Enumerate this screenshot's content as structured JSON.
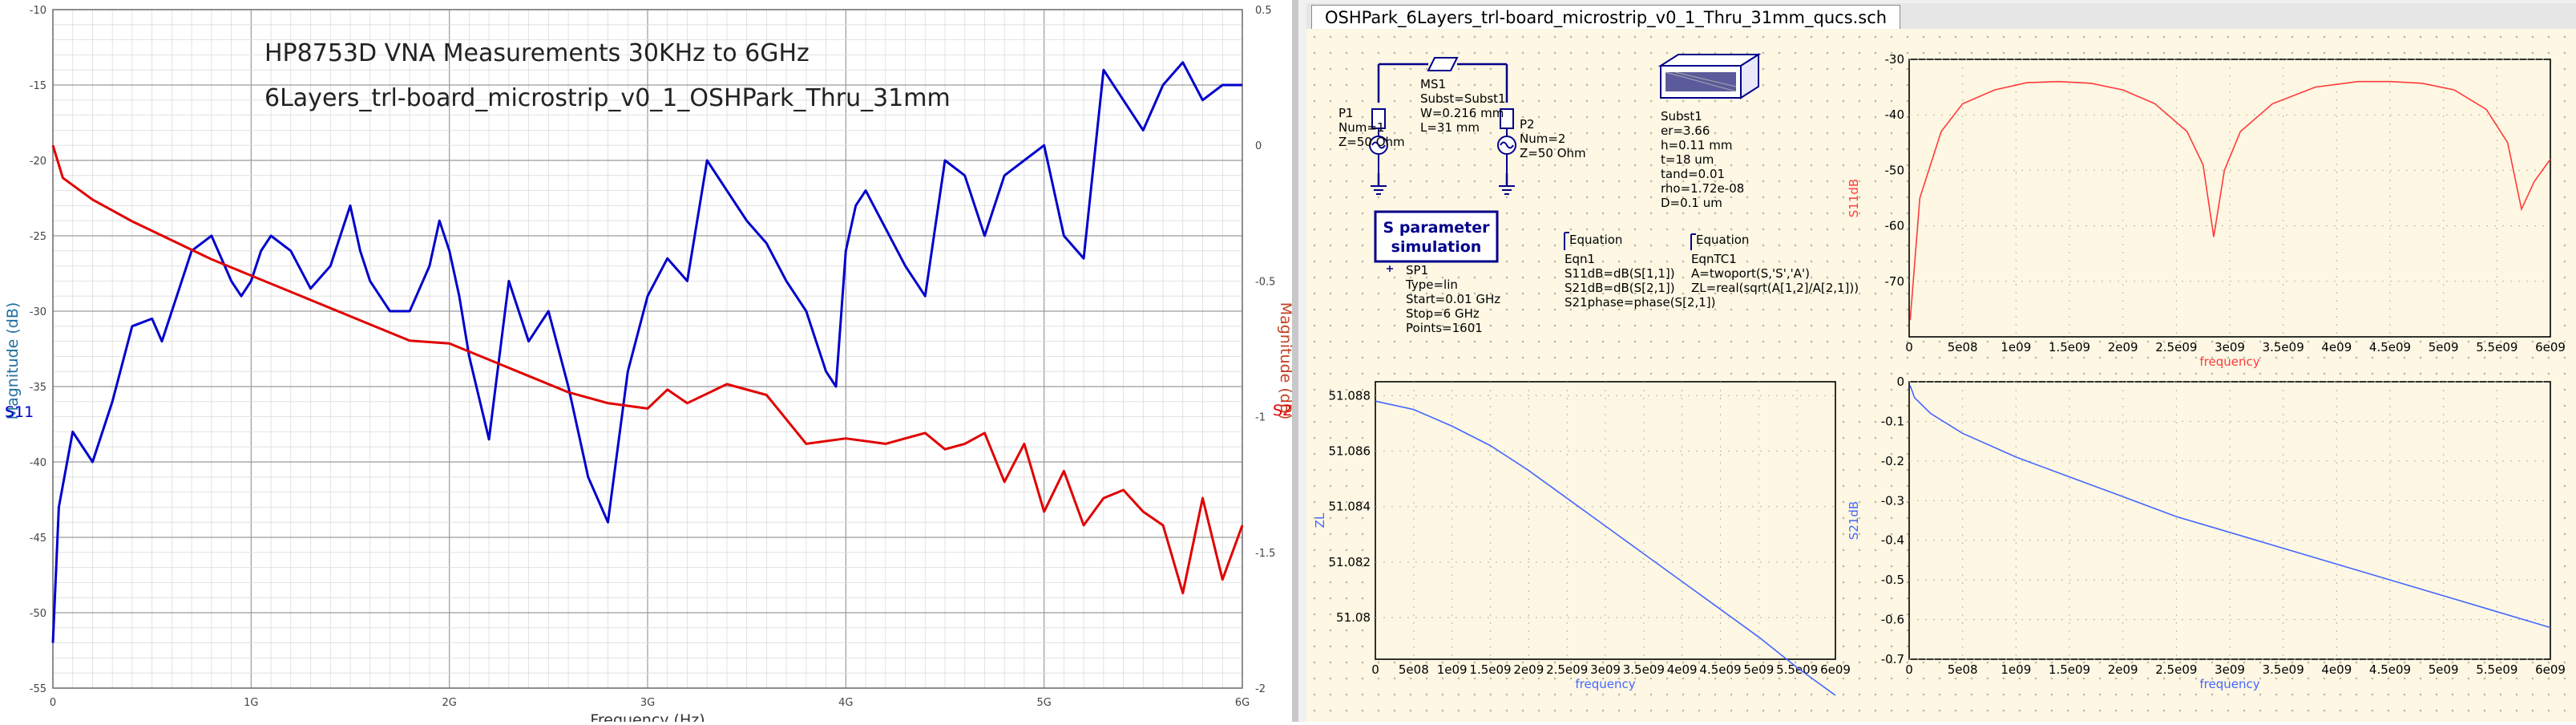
{
  "vna": {
    "title_line1": "HP8753D VNA Measurements 30KHz to 6GHz",
    "title_line2": "6Layers_trl-board_microstrip_v0_1_OSHPark_Thru_31mm",
    "ylabel_left": "Magnitude (dB)",
    "ylabel_right": "Magnitude (dB)",
    "series_left": "S11",
    "series_right": "S21",
    "xlabel": "Frequency (Hz)",
    "left_ticks": [
      "-10",
      "-15",
      "-20",
      "-25",
      "-30",
      "-35",
      "-40",
      "-45",
      "-50",
      "-55"
    ],
    "right_ticks": [
      "0.5",
      "0",
      "-0.5",
      "-1",
      "-1.5",
      "-2"
    ],
    "x_ticks": [
      "0",
      "1G",
      "2G",
      "3G",
      "4G",
      "5G",
      "6G"
    ]
  },
  "qucs": {
    "tab_title": "OSHPark_6Layers_trl-board_microstrip_v0_1_Thru_31mm_qucs.sch",
    "p1": {
      "name": "P1",
      "num": "Num=1",
      "z": "Z=50 Ohm"
    },
    "ms1": {
      "name": "MS1",
      "subst": "Subst=Subst1",
      "w": "W=0.216 mm",
      "l": "L=31 mm"
    },
    "p2": {
      "name": "P2",
      "num": "Num=2",
      "z": "Z=50 Ohm"
    },
    "subst": {
      "name": "Subst1",
      "er": "er=3.66",
      "h": "h=0.11 mm",
      "t": "t=18 um",
      "tand": "tand=0.01",
      "rho": "rho=1.72e-08",
      "d": "D=0.1 um"
    },
    "sim": {
      "title1": "S parameter",
      "title2": "simulation",
      "name": "SP1",
      "type": "Type=lin",
      "start": "Start=0.01 GHz",
      "stop": "Stop=6 GHz",
      "points": "Points=1601"
    },
    "eqn1": {
      "header": "Equation",
      "name": "Eqn1",
      "l1": "S11dB=dB(S[1,1])",
      "l2": "S21dB=dB(S[2,1])",
      "l3": "S21phase=phase(S[2,1])"
    },
    "eqn2": {
      "header": "Equation",
      "name": "EqnTC1",
      "l1": "A=twoport(S,'S','A')",
      "l2": "ZL=real(sqrt(A[1,2]/A[2,1]))"
    }
  },
  "chart_data": [
    {
      "type": "line",
      "title": "HP8753D VNA Measurements 30KHz to 6GHz",
      "subtitle": "6Layers_trl-board_microstrip_v0_1_OSHPark_Thru_31mm",
      "xlabel": "Frequency (Hz)",
      "x_unit": "GHz",
      "xlim": [
        0,
        6
      ],
      "ylabel": "Magnitude (dB)",
      "ylim": [
        -55,
        -10
      ],
      "y2label": "Magnitude (dB)",
      "y2lim": [
        -2,
        0.5
      ],
      "grid": true,
      "series": [
        {
          "name": "S11",
          "color": "#0000cc",
          "axis": "left",
          "x": [
            0,
            0.03,
            0.1,
            0.2,
            0.3,
            0.4,
            0.5,
            0.55,
            0.6,
            0.7,
            0.8,
            0.9,
            0.95,
            1.0,
            1.05,
            1.1,
            1.2,
            1.3,
            1.4,
            1.45,
            1.5,
            1.55,
            1.6,
            1.7,
            1.8,
            1.9,
            1.95,
            2.0,
            2.05,
            2.1,
            2.2,
            2.3,
            2.4,
            2.5,
            2.6,
            2.7,
            2.8,
            2.9,
            3.0,
            3.1,
            3.2,
            3.3,
            3.4,
            3.5,
            3.6,
            3.7,
            3.8,
            3.9,
            3.95,
            4.0,
            4.05,
            4.1,
            4.2,
            4.3,
            4.4,
            4.5,
            4.6,
            4.7,
            4.8,
            4.9,
            5.0,
            5.1,
            5.2,
            5.3,
            5.4,
            5.5,
            5.6,
            5.7,
            5.8,
            5.9,
            6.0
          ],
          "y": [
            -52,
            -43,
            -38,
            -40,
            -36,
            -31,
            -30.5,
            -32,
            -30,
            -26,
            -25,
            -28,
            -29,
            -28,
            -26,
            -25,
            -26,
            -28.5,
            -27,
            -25,
            -23,
            -26,
            -28,
            -30,
            -30,
            -27,
            -24,
            -26,
            -29,
            -33,
            -38.5,
            -28,
            -32,
            -30,
            -35,
            -41,
            -44,
            -34,
            -29,
            -26.5,
            -28,
            -20,
            -22,
            -24,
            -25.5,
            -28,
            -30,
            -34,
            -35,
            -26,
            -23,
            -22,
            -24.5,
            -27,
            -29,
            -20,
            -21,
            -25,
            -21,
            -20,
            -19,
            -25,
            -26.5,
            -14,
            -16,
            -18,
            -15,
            -13.5,
            -16,
            -15,
            -15
          ]
        },
        {
          "name": "S21",
          "color": "#e00000",
          "axis": "right",
          "x": [
            0,
            0.05,
            0.2,
            0.4,
            0.6,
            0.8,
            1.0,
            1.2,
            1.4,
            1.6,
            1.8,
            2.0,
            2.2,
            2.4,
            2.6,
            2.8,
            3.0,
            3.1,
            3.2,
            3.4,
            3.6,
            3.8,
            4.0,
            4.2,
            4.4,
            4.5,
            4.6,
            4.7,
            4.8,
            4.9,
            5.0,
            5.1,
            5.2,
            5.3,
            5.4,
            5.5,
            5.6,
            5.7,
            5.8,
            5.9,
            6.0
          ],
          "y": [
            0,
            -0.12,
            -0.2,
            -0.28,
            -0.35,
            -0.42,
            -0.48,
            -0.54,
            -0.6,
            -0.66,
            -0.72,
            -0.73,
            -0.79,
            -0.85,
            -0.91,
            -0.95,
            -0.97,
            -0.9,
            -0.95,
            -0.88,
            -0.92,
            -1.1,
            -1.08,
            -1.1,
            -1.06,
            -1.12,
            -1.1,
            -1.06,
            -1.24,
            -1.1,
            -1.35,
            -1.2,
            -1.4,
            -1.3,
            -1.27,
            -1.35,
            -1.4,
            -1.65,
            -1.3,
            -1.6,
            -1.4
          ]
        }
      ]
    },
    {
      "type": "line",
      "title": "",
      "xlabel": "frequency",
      "ylabel": "S11dB",
      "xlim": [
        0,
        6000000000.0
      ],
      "ylim": [
        -80,
        -30
      ],
      "x_ticks": [
        "0",
        "5e08",
        "1e09",
        "1.5e09",
        "2e09",
        "2.5e09",
        "3e09",
        "3.5e09",
        "4e09",
        "4.5e09",
        "5e09",
        "5.5e09",
        "6e09"
      ],
      "y_ticks": [
        "-30",
        "-40",
        "-50",
        "-60",
        "-70"
      ],
      "series": [
        {
          "name": "S11dB",
          "color": "#ff3b3b",
          "x": [
            10000000.0,
            100000000.0,
            300000000.0,
            500000000.0,
            800000000.0,
            1100000000.0,
            1400000000.0,
            1700000000.0,
            2000000000.0,
            2300000000.0,
            2600000000.0,
            2750000000.0,
            2850000000.0,
            2950000000.0,
            3100000000.0,
            3400000000.0,
            3800000000.0,
            4200000000.0,
            4500000000.0,
            4800000000.0,
            5100000000.0,
            5400000000.0,
            5600000000.0,
            5730000000.0,
            5850000000.0,
            6000000000.0
          ],
          "y": [
            -77,
            -55,
            -43,
            -38,
            -35.5,
            -34.2,
            -34,
            -34.3,
            -35.5,
            -38,
            -43,
            -49,
            -62,
            -50,
            -43,
            -38,
            -35,
            -34,
            -34,
            -34.3,
            -35.5,
            -39,
            -45,
            -57,
            -52,
            -48
          ]
        }
      ]
    },
    {
      "type": "line",
      "title": "",
      "xlabel": "frequency",
      "ylabel": "ZL",
      "xlim": [
        0,
        6000000000.0
      ],
      "ylim": [
        51.0785,
        51.0885
      ],
      "x_ticks": [
        "0",
        "5e08",
        "1e09",
        "1.5e09",
        "2e09",
        "2.5e09",
        "3e09",
        "3.5e09",
        "4e09",
        "4.5e09",
        "5e09",
        "5.5e09",
        "6e09"
      ],
      "y_ticks": [
        "51.088",
        "51.086",
        "51.084",
        "51.082",
        "51.08"
      ],
      "series": [
        {
          "name": "ZL",
          "color": "#4466ff",
          "x": [
            0,
            500000000.0,
            1000000000.0,
            1500000000.0,
            2000000000.0,
            2500000000.0,
            3000000000.0,
            3500000000.0,
            4000000000.0,
            4500000000.0,
            5000000000.0,
            5500000000.0,
            6000000000.0
          ],
          "y": [
            51.0878,
            51.0875,
            51.0869,
            51.0862,
            51.0853,
            51.0843,
            51.0833,
            51.0823,
            51.0813,
            51.0803,
            51.0793,
            51.0782,
            51.0772
          ]
        }
      ]
    },
    {
      "type": "line",
      "title": "",
      "xlabel": "frequency",
      "ylabel": "S21dB",
      "xlim": [
        0,
        6000000000.0
      ],
      "ylim": [
        -0.7,
        0
      ],
      "x_ticks": [
        "0",
        "5e08",
        "1e09",
        "1.5e09",
        "2e09",
        "2.5e09",
        "3e09",
        "3.5e09",
        "4e09",
        "4.5e09",
        "5e09",
        "5.5e09",
        "6e09"
      ],
      "y_ticks": [
        "0",
        "-0.1",
        "-0.2",
        "-0.3",
        "-0.4",
        "-0.5",
        "-0.6",
        "-0.7"
      ],
      "series": [
        {
          "name": "S21dB",
          "color": "#4466ff",
          "x": [
            10000000.0,
            50000000.0,
            200000000.0,
            500000000.0,
            1000000000.0,
            1500000000.0,
            2000000000.0,
            2500000000.0,
            3000000000.0,
            3500000000.0,
            4000000000.0,
            4500000000.0,
            5000000000.0,
            5500000000.0,
            6000000000.0
          ],
          "y": [
            -0.01,
            -0.04,
            -0.08,
            -0.13,
            -0.19,
            -0.24,
            -0.29,
            -0.34,
            -0.38,
            -0.42,
            -0.46,
            -0.5,
            -0.54,
            -0.58,
            -0.62
          ]
        }
      ]
    }
  ]
}
